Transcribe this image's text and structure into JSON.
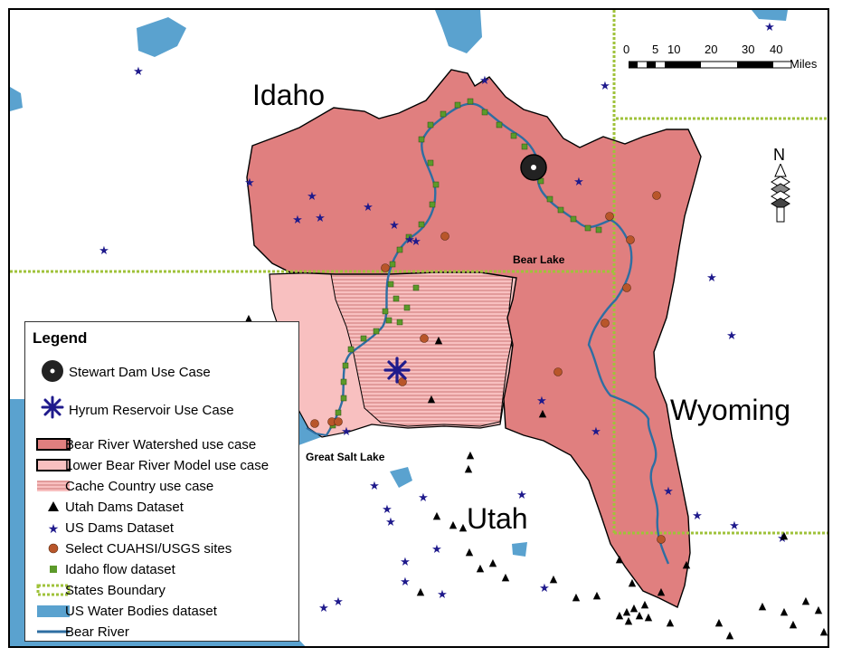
{
  "states": {
    "idaho": "Idaho",
    "utah": "Utah",
    "wyoming": "Wyoming"
  },
  "places": {
    "bear_lake": "Bear Lake",
    "great_salt_lake": "Great Salt Lake"
  },
  "legend": {
    "title": "Legend",
    "items": [
      {
        "label": "Stewart Dam Use Case",
        "icon": "stewart-dam-icon"
      },
      {
        "label": "Hyrum Reservoir Use Case",
        "icon": "hyrum-reservoir-icon"
      },
      {
        "label": "Bear River Watershed use case",
        "icon": "watershed-swatch-icon"
      },
      {
        "label": "Lower Bear River Model use case",
        "icon": "lower-bear-river-swatch-icon"
      },
      {
        "label": "Cache Country use case",
        "icon": "cache-country-hatch-icon"
      },
      {
        "label": "Utah Dams Dataset",
        "icon": "triangle-icon"
      },
      {
        "label": "US Dams Dataset",
        "icon": "star-icon"
      },
      {
        "label": "Select CUAHSI/USGS sites",
        "icon": "dot-circle-icon"
      },
      {
        "label": "Idaho flow dataset",
        "icon": "square-icon"
      },
      {
        "label": "States Boundary",
        "icon": "dashed-boundary-icon"
      },
      {
        "label": "US Water Bodies dataset",
        "icon": "water-swatch-icon"
      },
      {
        "label": "Bear River",
        "icon": "river-line-icon"
      }
    ]
  },
  "scale": {
    "ticks": [
      "0",
      "5",
      "10",
      "20",
      "30",
      "40"
    ],
    "unit": "Miles"
  },
  "north": {
    "label": "N"
  },
  "colors": {
    "watershed": "#e07f7f",
    "lower_bear_river": "#f8c0c0",
    "water": "#5aa2cf",
    "river": "#2e6ea2",
    "state_boundary": "#9fc23a",
    "flow_site": "#5c9a2a",
    "cuahsi_site": "#b8562a",
    "us_dam": "#1f1a8c",
    "utah_dam": "#000000"
  }
}
